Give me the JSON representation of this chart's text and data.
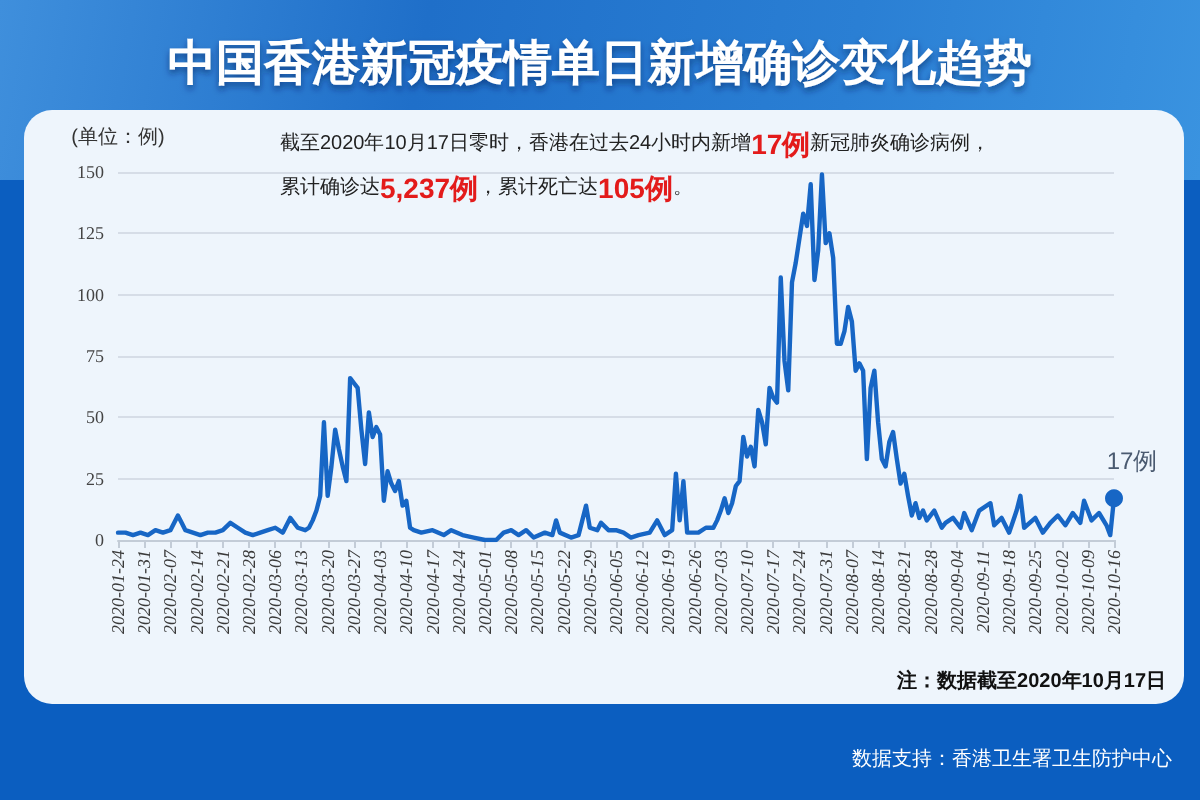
{
  "chart_data": {
    "type": "line",
    "title": "中国香港新冠疫情单日新增确诊变化趋势",
    "ylabel": "(单位：例)",
    "x": [
      "2020-01-24",
      "2020-01-26",
      "2020-01-28",
      "2020-01-30",
      "2020-02-01",
      "2020-02-03",
      "2020-02-05",
      "2020-02-07",
      "2020-02-09",
      "2020-02-10",
      "2020-02-11",
      "2020-02-13",
      "2020-02-15",
      "2020-02-17",
      "2020-02-19",
      "2020-02-21",
      "2020-02-23",
      "2020-02-25",
      "2020-02-27",
      "2020-02-29",
      "2020-03-02",
      "2020-03-04",
      "2020-03-06",
      "2020-03-08",
      "2020-03-10",
      "2020-03-12",
      "2020-03-14",
      "2020-03-15",
      "2020-03-16",
      "2020-03-17",
      "2020-03-18",
      "2020-03-19",
      "2020-03-20",
      "2020-03-21",
      "2020-03-22",
      "2020-03-23",
      "2020-03-24",
      "2020-03-25",
      "2020-03-26",
      "2020-03-27",
      "2020-03-28",
      "2020-03-29",
      "2020-03-30",
      "2020-03-31",
      "2020-04-01",
      "2020-04-02",
      "2020-04-03",
      "2020-04-04",
      "2020-04-05",
      "2020-04-06",
      "2020-04-07",
      "2020-04-08",
      "2020-04-09",
      "2020-04-10",
      "2020-04-11",
      "2020-04-12",
      "2020-04-14",
      "2020-04-17",
      "2020-04-20",
      "2020-04-22",
      "2020-04-25",
      "2020-04-28",
      "2020-05-01",
      "2020-05-04",
      "2020-05-06",
      "2020-05-08",
      "2020-05-10",
      "2020-05-12",
      "2020-05-14",
      "2020-05-17",
      "2020-05-19",
      "2020-05-20",
      "2020-05-21",
      "2020-05-24",
      "2020-05-26",
      "2020-05-28",
      "2020-05-29",
      "2020-05-31",
      "2020-06-01",
      "2020-06-03",
      "2020-06-05",
      "2020-06-07",
      "2020-06-09",
      "2020-06-11",
      "2020-06-14",
      "2020-06-16",
      "2020-06-18",
      "2020-06-20",
      "2020-06-21",
      "2020-06-22",
      "2020-06-23",
      "2020-06-24",
      "2020-06-27",
      "2020-06-29",
      "2020-07-01",
      "2020-07-02",
      "2020-07-03",
      "2020-07-04",
      "2020-07-05",
      "2020-07-06",
      "2020-07-07",
      "2020-07-08",
      "2020-07-09",
      "2020-07-10",
      "2020-07-11",
      "2020-07-12",
      "2020-07-13",
      "2020-07-14",
      "2020-07-15",
      "2020-07-16",
      "2020-07-17",
      "2020-07-18",
      "2020-07-19",
      "2020-07-20",
      "2020-07-21",
      "2020-07-22",
      "2020-07-23",
      "2020-07-24",
      "2020-07-25",
      "2020-07-26",
      "2020-07-27",
      "2020-07-28",
      "2020-07-29",
      "2020-07-30",
      "2020-07-31",
      "2020-08-01",
      "2020-08-02",
      "2020-08-03",
      "2020-08-04",
      "2020-08-05",
      "2020-08-06",
      "2020-08-07",
      "2020-08-08",
      "2020-08-09",
      "2020-08-10",
      "2020-08-11",
      "2020-08-12",
      "2020-08-13",
      "2020-08-14",
      "2020-08-15",
      "2020-08-16",
      "2020-08-17",
      "2020-08-18",
      "2020-08-19",
      "2020-08-20",
      "2020-08-21",
      "2020-08-22",
      "2020-08-23",
      "2020-08-24",
      "2020-08-25",
      "2020-08-26",
      "2020-08-27",
      "2020-08-29",
      "2020-08-31",
      "2020-09-01",
      "2020-09-03",
      "2020-09-05",
      "2020-09-06",
      "2020-09-08",
      "2020-09-10",
      "2020-09-13",
      "2020-09-14",
      "2020-09-16",
      "2020-09-18",
      "2020-09-20",
      "2020-09-21",
      "2020-09-22",
      "2020-09-25",
      "2020-09-27",
      "2020-09-29",
      "2020-10-01",
      "2020-10-03",
      "2020-10-05",
      "2020-10-07",
      "2020-10-08",
      "2020-10-10",
      "2020-10-12",
      "2020-10-14",
      "2020-10-15",
      "2020-10-16"
    ],
    "values": [
      3,
      3,
      2,
      3,
      2,
      4,
      3,
      4,
      10,
      7,
      4,
      3,
      2,
      3,
      3,
      4,
      7,
      5,
      3,
      2,
      3,
      4,
      5,
      3,
      9,
      5,
      4,
      5,
      8,
      12,
      18,
      48,
      18,
      30,
      45,
      37,
      30,
      24,
      66,
      64,
      62,
      45,
      31,
      52,
      42,
      46,
      43,
      16,
      28,
      23,
      20,
      24,
      14,
      16,
      5,
      4,
      3,
      4,
      2,
      4,
      2,
      1,
      0,
      0,
      3,
      4,
      2,
      4,
      1,
      3,
      2,
      8,
      3,
      1,
      2,
      14,
      5,
      4,
      7,
      4,
      4,
      3,
      1,
      2,
      3,
      8,
      2,
      4,
      27,
      8,
      24,
      3,
      3,
      5,
      5,
      8,
      12,
      17,
      11,
      15,
      22,
      24,
      42,
      34,
      38,
      30,
      53,
      48,
      39,
      62,
      58,
      56,
      107,
      73,
      61,
      105,
      113,
      123,
      133,
      128,
      145,
      106,
      118,
      149,
      121,
      125,
      115,
      80,
      80,
      85,
      95,
      89,
      69,
      72,
      69,
      33,
      62,
      69,
      48,
      33,
      30,
      40,
      44,
      33,
      23,
      27,
      18,
      10,
      15,
      9,
      12,
      8,
      12,
      5,
      7,
      9,
      5,
      11,
      4,
      12,
      15,
      6,
      9,
      3,
      12,
      18,
      5,
      9,
      3,
      7,
      10,
      6,
      11,
      7,
      16,
      8,
      11,
      6,
      2,
      17
    ],
    "color": "#1766c5",
    "line_style": "solid",
    "xlim": [
      "2020-01-24",
      "2020-10-16"
    ],
    "xticks": [
      "2020-01-24",
      "2020-01-31",
      "2020-02-07",
      "2020-02-14",
      "2020-02-21",
      "2020-02-28",
      "2020-03-06",
      "2020-03-13",
      "2020-03-20",
      "2020-03-27",
      "2020-04-03",
      "2020-04-10",
      "2020-04-17",
      "2020-04-24",
      "2020-05-01",
      "2020-05-08",
      "2020-05-15",
      "2020-05-22",
      "2020-05-29",
      "2020-06-05",
      "2020-06-12",
      "2020-06-19",
      "2020-06-26",
      "2020-07-03",
      "2020-07-10",
      "2020-07-17",
      "2020-07-24",
      "2020-07-31",
      "2020-08-07",
      "2020-08-14",
      "2020-08-21",
      "2020-08-28",
      "2020-09-04",
      "2020-09-11",
      "2020-09-18",
      "2020-09-25",
      "2020-10-02",
      "2020-10-09",
      "2020-10-16"
    ],
    "ylim": [
      0,
      150
    ],
    "yticks": [
      0,
      25,
      50,
      75,
      100,
      125,
      150
    ],
    "grid": "y",
    "annotations": [
      "截至2020年10月17日零时，香港在过去24小时内新增17例新冠肺炎确诊病例，",
      "累计确诊达5,237例，累计死亡达105例。",
      {
        "text": "17例",
        "x": "2020-10-16",
        "y": 17
      },
      "注：数据截至2020年10月17日",
      "数据支持：香港卫生署卫生防护中心"
    ]
  }
}
